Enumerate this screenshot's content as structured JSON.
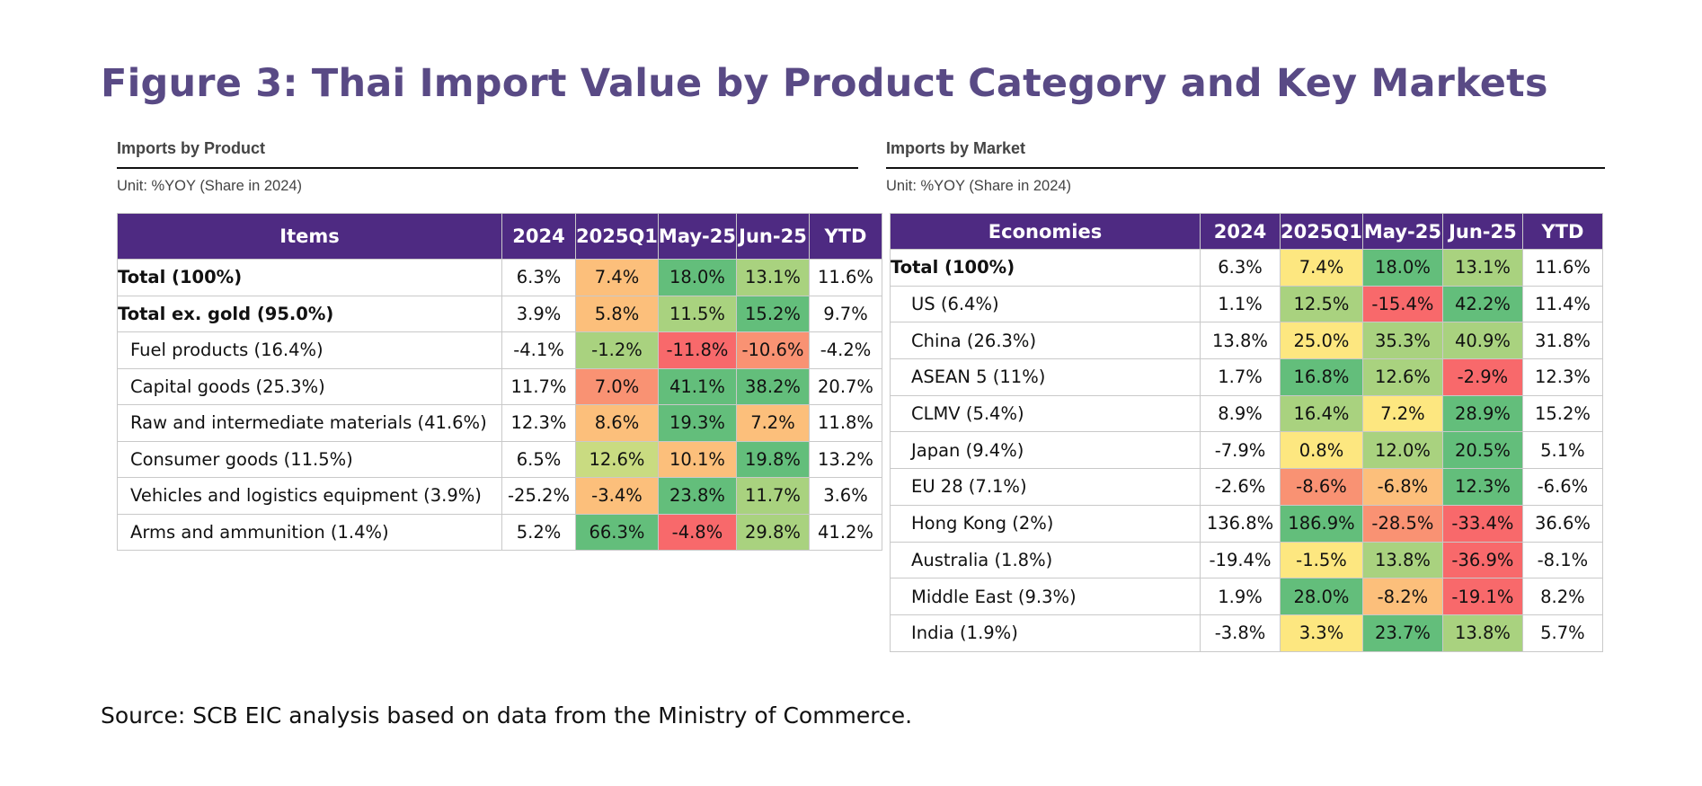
{
  "figure_title": "Figure 3: Thai Import Value by Product Category and Key Markets",
  "source_note": "Source: SCB EIC analysis based on data from the Ministry of Commerce.",
  "colors": {
    "header_bg": "#4e2a82",
    "title": "#594a85",
    "heat_dark_green": "#63be7b",
    "heat_light_green": "#a9d27f",
    "heat_yellow": "#fde780",
    "heat_orange": "#fcbf7b",
    "heat_salmon": "#f99273",
    "heat_red": "#f8696b"
  },
  "chart_data": [
    {
      "type": "table",
      "title": "Imports by Product",
      "unit": "Unit: %YOY (Share in 2024)",
      "columns": [
        "Items",
        "2024",
        "2025Q1",
        "May-25",
        "Jun-25",
        "YTD"
      ],
      "heatmap_columns": [
        "2025Q1",
        "May-25",
        "Jun-25"
      ],
      "rows": [
        {
          "label": "Total (100%)",
          "bold": true,
          "values": [
            "6.3%",
            "7.4%",
            "18.0%",
            "13.1%",
            "11.6%"
          ],
          "heat": [
            "none",
            "orange",
            "dark_green",
            "light_green",
            "none"
          ]
        },
        {
          "label": "Total ex. gold (95.0%)",
          "bold": true,
          "values": [
            "3.9%",
            "5.8%",
            "11.5%",
            "15.2%",
            "9.7%"
          ],
          "heat": [
            "none",
            "orange",
            "light_green",
            "dark_green",
            "none"
          ]
        },
        {
          "label": "Fuel products (16.4%)",
          "bold": false,
          "values": [
            "-4.1%",
            "-1.2%",
            "-11.8%",
            "-10.6%",
            "-4.2%"
          ],
          "heat": [
            "none",
            "light_green",
            "red",
            "salmon",
            "none"
          ]
        },
        {
          "label": "Capital goods (25.3%)",
          "bold": false,
          "values": [
            "11.7%",
            "7.0%",
            "41.1%",
            "38.2%",
            "20.7%"
          ],
          "heat": [
            "none",
            "salmon",
            "dark_green",
            "dark_green",
            "none"
          ]
        },
        {
          "label": "Raw and intermediate materials (41.6%)",
          "bold": false,
          "values": [
            "12.3%",
            "8.6%",
            "19.3%",
            "7.2%",
            "11.8%"
          ],
          "heat": [
            "none",
            "orange",
            "dark_green",
            "orange",
            "none"
          ]
        },
        {
          "label": "Consumer goods (11.5%)",
          "bold": false,
          "values": [
            "6.5%",
            "12.6%",
            "10.1%",
            "19.8%",
            "13.2%"
          ],
          "heat": [
            "none",
            "yellow_green",
            "orange",
            "dark_green",
            "none"
          ]
        },
        {
          "label": "Vehicles and logistics equipment (3.9%)",
          "bold": false,
          "values": [
            "-25.2%",
            "-3.4%",
            "23.8%",
            "11.7%",
            "3.6%"
          ],
          "heat": [
            "none",
            "orange",
            "dark_green",
            "light_green",
            "none"
          ]
        },
        {
          "label": "Arms and ammunition (1.4%)",
          "bold": false,
          "values": [
            "5.2%",
            "66.3%",
            "-4.8%",
            "29.8%",
            "41.2%"
          ],
          "heat": [
            "none",
            "dark_green",
            "red",
            "light_green",
            "none"
          ]
        }
      ]
    },
    {
      "type": "table",
      "title": "Imports by Market",
      "unit": "Unit: %YOY (Share in 2024)",
      "columns": [
        "Economies",
        "2024",
        "2025Q1",
        "May-25",
        "Jun-25",
        "YTD"
      ],
      "heatmap_columns": [
        "2025Q1",
        "May-25",
        "Jun-25"
      ],
      "rows": [
        {
          "label": "Total (100%)",
          "bold": true,
          "values": [
            "6.3%",
            "7.4%",
            "18.0%",
            "13.1%",
            "11.6%"
          ],
          "heat": [
            "none",
            "yellow",
            "dark_green",
            "light_green",
            "none"
          ]
        },
        {
          "label": "US (6.4%)",
          "bold": false,
          "values": [
            "1.1%",
            "12.5%",
            "-15.4%",
            "42.2%",
            "11.4%"
          ],
          "heat": [
            "none",
            "light_green",
            "red",
            "dark_green",
            "none"
          ]
        },
        {
          "label": "China (26.3%)",
          "bold": false,
          "values": [
            "13.8%",
            "25.0%",
            "35.3%",
            "40.9%",
            "31.8%"
          ],
          "heat": [
            "none",
            "yellow",
            "light_green",
            "light_green",
            "none"
          ]
        },
        {
          "label": "ASEAN 5 (11%)",
          "bold": false,
          "values": [
            "1.7%",
            "16.8%",
            "12.6%",
            "-2.9%",
            "12.3%"
          ],
          "heat": [
            "none",
            "dark_green",
            "light_green",
            "red",
            "none"
          ]
        },
        {
          "label": "CLMV (5.4%)",
          "bold": false,
          "values": [
            "8.9%",
            "16.4%",
            "7.2%",
            "28.9%",
            "15.2%"
          ],
          "heat": [
            "none",
            "light_green",
            "yellow",
            "dark_green",
            "none"
          ]
        },
        {
          "label": "Japan (9.4%)",
          "bold": false,
          "values": [
            "-7.9%",
            "0.8%",
            "12.0%",
            "20.5%",
            "5.1%"
          ],
          "heat": [
            "none",
            "yellow",
            "light_green",
            "dark_green",
            "none"
          ]
        },
        {
          "label": "EU 28 (7.1%)",
          "bold": false,
          "values": [
            "-2.6%",
            "-8.6%",
            "-6.8%",
            "12.3%",
            "-6.6%"
          ],
          "heat": [
            "none",
            "salmon",
            "orange",
            "dark_green",
            "none"
          ]
        },
        {
          "label": "Hong Kong (2%)",
          "bold": false,
          "values": [
            "136.8%",
            "186.9%",
            "-28.5%",
            "-33.4%",
            "36.6%"
          ],
          "heat": [
            "none",
            "dark_green",
            "salmon",
            "red",
            "none"
          ]
        },
        {
          "label": "Australia (1.8%)",
          "bold": false,
          "values": [
            "-19.4%",
            "-1.5%",
            "13.8%",
            "-36.9%",
            "-8.1%"
          ],
          "heat": [
            "none",
            "yellow",
            "light_green",
            "red",
            "none"
          ]
        },
        {
          "label": "Middle East (9.3%)",
          "bold": false,
          "values": [
            "1.9%",
            "28.0%",
            "-8.2%",
            "-19.1%",
            "8.2%"
          ],
          "heat": [
            "none",
            "dark_green",
            "orange",
            "red",
            "none"
          ]
        },
        {
          "label": "India (1.9%)",
          "bold": false,
          "values": [
            "-3.8%",
            "3.3%",
            "23.7%",
            "13.8%",
            "5.7%"
          ],
          "heat": [
            "none",
            "yellow",
            "dark_green",
            "light_green",
            "none"
          ]
        }
      ]
    }
  ]
}
